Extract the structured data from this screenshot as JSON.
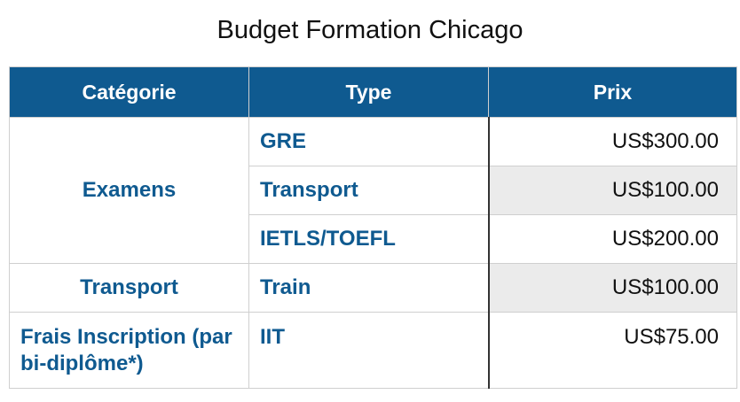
{
  "title": "Budget Formation Chicago",
  "headers": [
    "Catégorie",
    "Type",
    "Prix"
  ],
  "rows": [
    {
      "category": "Examens",
      "type": "GRE",
      "price": "US$300.00"
    },
    {
      "type": "Transport",
      "price": "US$100.00"
    },
    {
      "type": "IETLS/TOEFL",
      "price": "US$200.00"
    },
    {
      "category": "Transport",
      "type": "Train",
      "price": "US$100.00"
    },
    {
      "category": "Frais Inscription (par bi-diplôme*)",
      "type": "IIT",
      "price": "US$75.00"
    }
  ],
  "colors": {
    "header_bg": "#0f5a90",
    "accent_text": "#0f5a90",
    "row_shade": "#ebebeb"
  }
}
